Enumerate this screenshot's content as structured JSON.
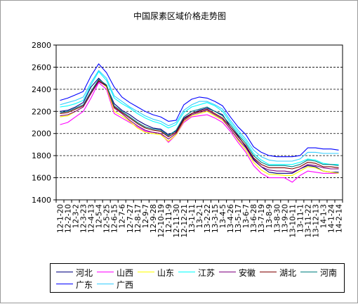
{
  "chart_data": {
    "type": "line",
    "title": "中国尿素区域价格走势图",
    "xlabel": "",
    "ylabel": "",
    "ylim": [
      1400,
      2800
    ],
    "yticks": [
      1400,
      1600,
      1800,
      2000,
      2200,
      2400,
      2600,
      2800
    ],
    "grid": "horizontal-dashed",
    "legend_placement": "bottom",
    "x": [
      "12-1-20",
      "12-2-10",
      "12-3-2",
      "12-3-23",
      "12-4-13",
      "12-5-4",
      "12-5-25",
      "12-6-15",
      "12-7-6",
      "12-7-27",
      "12-8-17",
      "12-9-7",
      "12-9-28",
      "12-10-19",
      "12-11-9",
      "12-11-30",
      "12-12-21",
      "13-1-11",
      "13-2-1",
      "13-2-22",
      "13-3-15",
      "13-4-5",
      "13-4-26",
      "13-5-17",
      "13-6-7",
      "13-6-28",
      "13-7-19",
      "13-8-9",
      "13-8-30",
      "13-9-20",
      "13-10-11",
      "13-11-1",
      "13-11-22",
      "13-12-13",
      "14-1-3",
      "14-1-24",
      "14-2-14"
    ],
    "series": [
      {
        "name": "河北",
        "color": "#000080",
        "values": [
          2200,
          2210,
          2240,
          2280,
          2420,
          2500,
          2430,
          2270,
          2210,
          2170,
          2120,
          2080,
          2050,
          2040,
          1990,
          2020,
          2140,
          2180,
          2210,
          2230,
          2200,
          2170,
          2060,
          1980,
          1880,
          1770,
          1700,
          1650,
          1640,
          1640,
          1640,
          1680,
          1710,
          1700,
          1660,
          1650,
          1650
        ]
      },
      {
        "name": "山西",
        "color": "#ff00ff",
        "values": [
          2080,
          2100,
          2150,
          2200,
          2320,
          2460,
          2400,
          2180,
          2140,
          2100,
          2060,
          2020,
          2010,
          2000,
          1920,
          1990,
          2100,
          2150,
          2160,
          2170,
          2140,
          2100,
          2020,
          1920,
          1830,
          1710,
          1640,
          1600,
          1600,
          1600,
          1560,
          1620,
          1660,
          1650,
          1640,
          1640,
          1640
        ]
      },
      {
        "name": "山东",
        "color": "#ffff00",
        "values": [
          2150,
          2160,
          2200,
          2240,
          2360,
          2480,
          2420,
          2200,
          2160,
          2110,
          2050,
          2010,
          2000,
          1990,
          1930,
          1990,
          2110,
          2160,
          2180,
          2200,
          2160,
          2120,
          2040,
          1940,
          1850,
          1740,
          1670,
          1630,
          1630,
          1620,
          1620,
          1660,
          1700,
          1690,
          1660,
          1650,
          1640
        ]
      },
      {
        "name": "江苏",
        "color": "#00ffff",
        "values": [
          2240,
          2250,
          2270,
          2300,
          2440,
          2560,
          2480,
          2320,
          2270,
          2230,
          2180,
          2140,
          2110,
          2090,
          2050,
          2080,
          2190,
          2240,
          2260,
          2280,
          2250,
          2200,
          2100,
          2010,
          1930,
          1820,
          1760,
          1720,
          1720,
          1720,
          1720,
          1740,
          1770,
          1760,
          1730,
          1720,
          1720
        ]
      },
      {
        "name": "安徽",
        "color": "#800080",
        "values": [
          2160,
          2170,
          2200,
          2240,
          2360,
          2470,
          2430,
          2230,
          2180,
          2120,
          2070,
          2030,
          2010,
          2000,
          1950,
          2000,
          2120,
          2170,
          2190,
          2210,
          2170,
          2130,
          2040,
          1950,
          1870,
          1760,
          1700,
          1670,
          1660,
          1660,
          1650,
          1680,
          1720,
          1710,
          1690,
          1680,
          1680
        ]
      },
      {
        "name": "湖北",
        "color": "#800000",
        "values": [
          2180,
          2190,
          2220,
          2250,
          2370,
          2480,
          2430,
          2240,
          2190,
          2140,
          2090,
          2050,
          2030,
          2020,
          1970,
          2010,
          2130,
          2180,
          2200,
          2220,
          2180,
          2140,
          2060,
          1970,
          1890,
          1780,
          1720,
          1690,
          1690,
          1690,
          1680,
          1700,
          1740,
          1730,
          1700,
          1700,
          1690
        ]
      },
      {
        "name": "河南",
        "color": "#008080",
        "values": [
          2190,
          2200,
          2230,
          2260,
          2380,
          2490,
          2440,
          2250,
          2200,
          2150,
          2100,
          2060,
          2040,
          2030,
          1980,
          2030,
          2150,
          2200,
          2220,
          2240,
          2200,
          2160,
          2080,
          1990,
          1910,
          1800,
          1740,
          1710,
          1710,
          1710,
          1700,
          1720,
          1760,
          1750,
          1720,
          1720,
          1710
        ]
      },
      {
        "name": "广东",
        "color": "#0000ff",
        "values": [
          2300,
          2320,
          2350,
          2380,
          2520,
          2630,
          2550,
          2420,
          2330,
          2280,
          2240,
          2200,
          2170,
          2150,
          2110,
          2120,
          2260,
          2310,
          2330,
          2320,
          2290,
          2250,
          2150,
          2060,
          1990,
          1880,
          1830,
          1800,
          1790,
          1790,
          1790,
          1800,
          1870,
          1870,
          1860,
          1860,
          1850
        ]
      },
      {
        "name": "广西",
        "color": "#33ccff",
        "values": [
          2260,
          2280,
          2300,
          2330,
          2460,
          2570,
          2500,
          2340,
          2290,
          2240,
          2200,
          2160,
          2130,
          2110,
          2070,
          2100,
          2210,
          2260,
          2290,
          2290,
          2260,
          2220,
          2120,
          2030,
          1950,
          1850,
          1790,
          1760,
          1750,
          1750,
          1750,
          1770,
          1830,
          1830,
          1820,
          1820,
          1820
        ]
      }
    ]
  }
}
